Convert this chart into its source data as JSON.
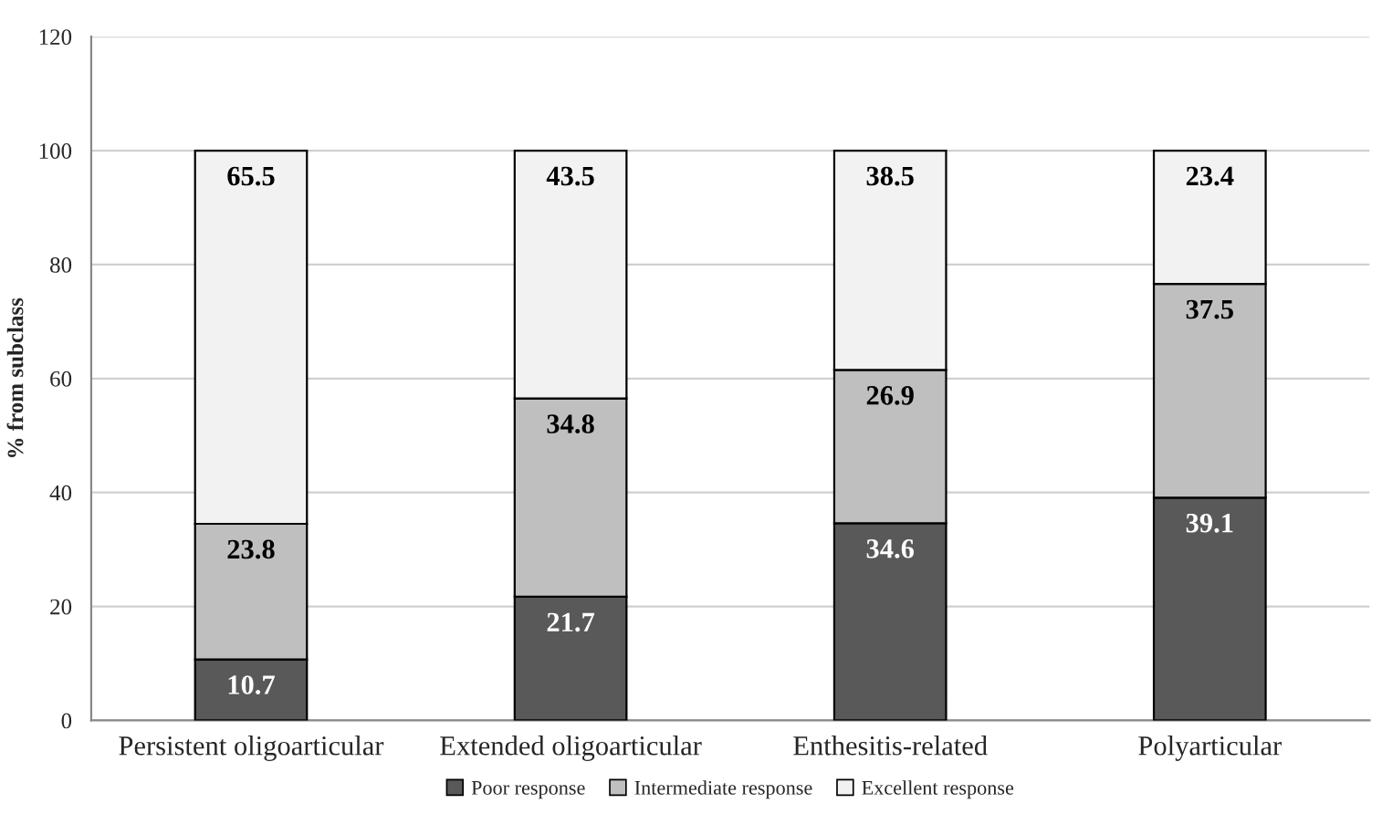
{
  "chart_data": {
    "type": "bar",
    "stacked": true,
    "ylabel": "% from subclass",
    "categories": [
      "Persistent oligoarticular",
      "Extended oligoarticular",
      "Enthesitis-related",
      "Polyarticular"
    ],
    "series": [
      {
        "name": "Poor response",
        "color": "#595959",
        "values": [
          10.7,
          21.7,
          34.6,
          39.1
        ]
      },
      {
        "name": "Intermediate response",
        "color": "#bfbfbf",
        "values": [
          23.8,
          34.8,
          26.9,
          37.5
        ]
      },
      {
        "name": "Excellent response",
        "color": "#f2f2f2",
        "values": [
          65.5,
          43.5,
          38.5,
          23.4
        ]
      }
    ],
    "ylim": [
      0,
      120
    ],
    "yticks": [
      0,
      20,
      40,
      60,
      80,
      100,
      120
    ],
    "grid": "y",
    "legend": "bottom",
    "data_labels": true
  }
}
